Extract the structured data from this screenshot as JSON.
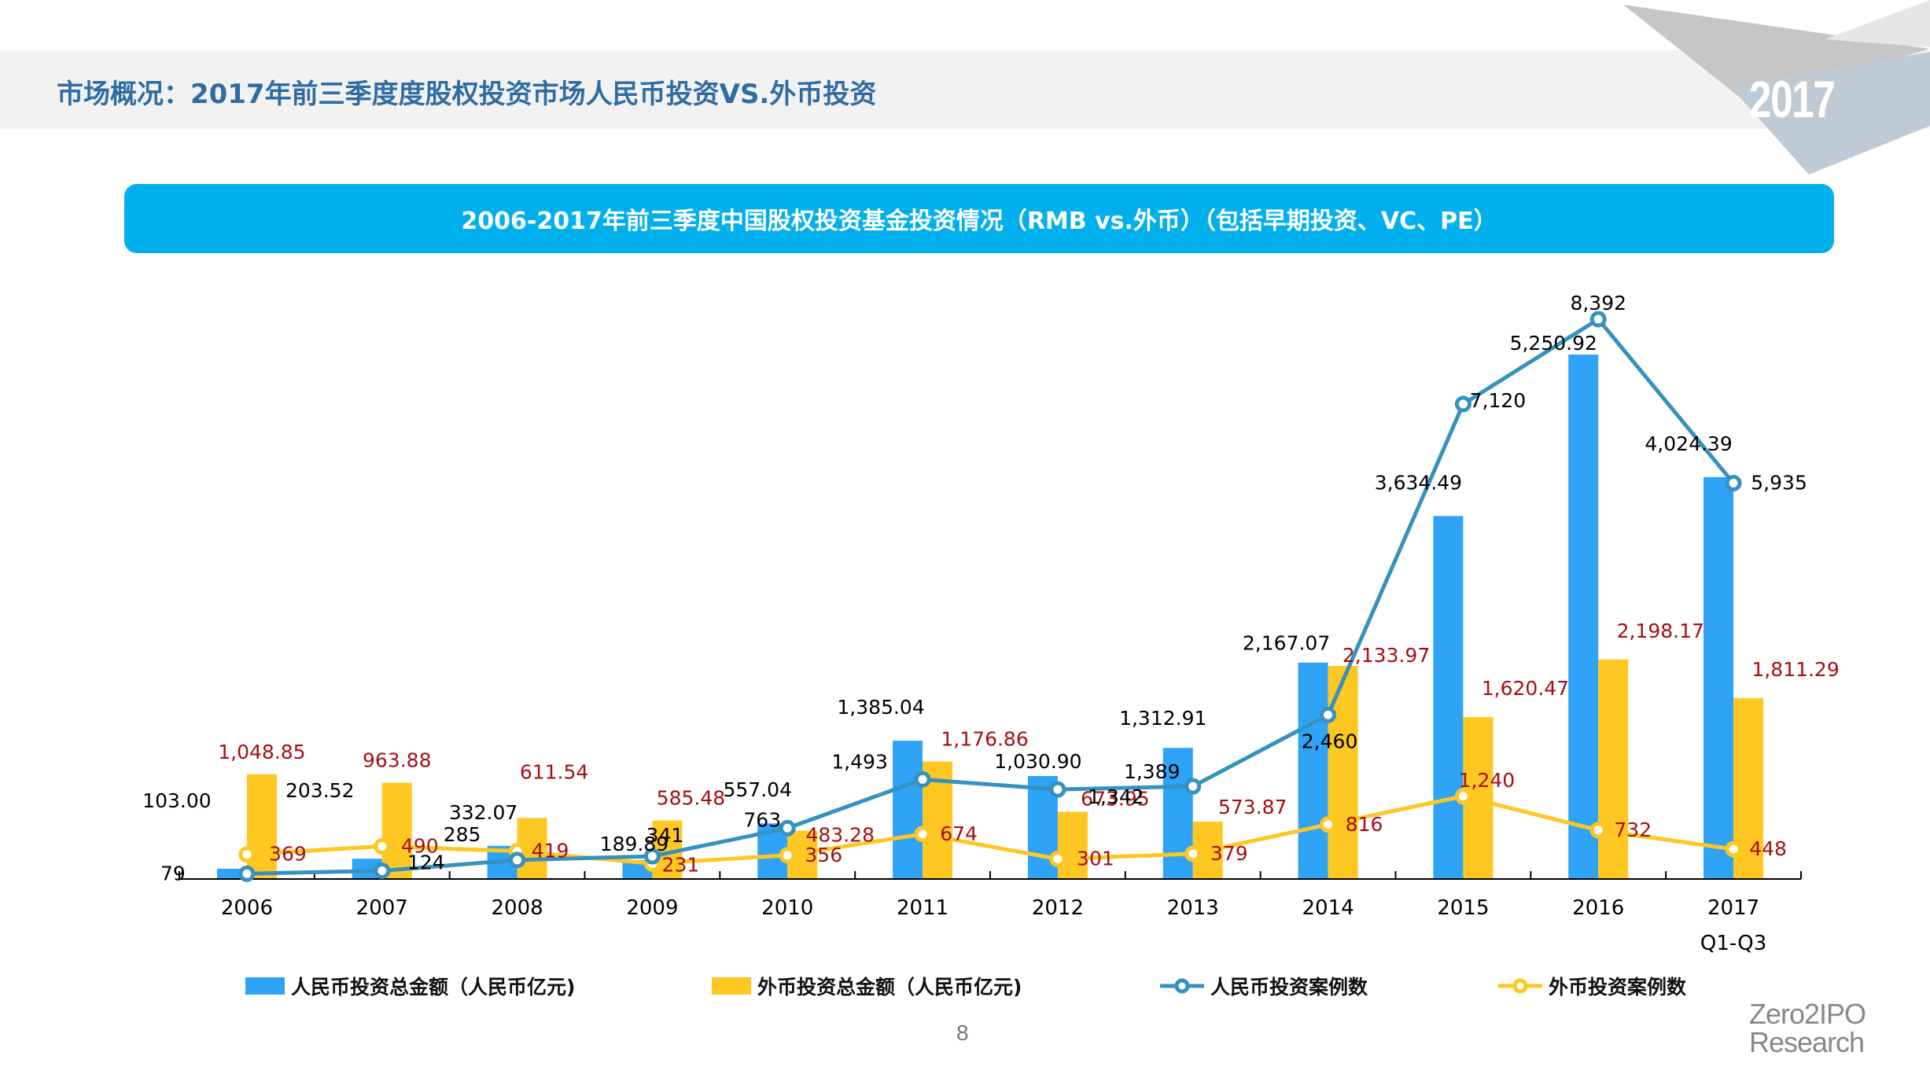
{
  "header": {
    "title": "市场概况：2017年前三季度度股权投资市场人民币投资VS.外币投资",
    "year_badge": "2017"
  },
  "banner": {
    "title": "2006-2017年前三季度中国股权投资基金投资情况（RMB vs.外币）（包括早期投资、VC、PE）"
  },
  "footer": {
    "page_number": "8",
    "brand_line1": "Zero2IPO",
    "brand_line2": "Research"
  },
  "colors": {
    "rmb_bar": "#2fa3f6",
    "foreign_bar": "#ffc721",
    "rmb_line": "#3592c0",
    "foreign_line": "#ffc721",
    "rmb_label": "#000000",
    "foreign_label": "#a50f15",
    "banner": "#00b0ec",
    "title": "#2e6da4"
  },
  "chart_data": {
    "type": "bar",
    "title": "2006-2017年前三季度中国股权投资基金投资情况（RMB vs.外币）（包括早期投资、VC、PE）",
    "categories": [
      "2006",
      "2007",
      "2008",
      "2009",
      "2010",
      "2011",
      "2012",
      "2013",
      "2014",
      "2015",
      "2016",
      "2017"
    ],
    "category_sublabels": [
      "",
      "",
      "",
      "",
      "",
      "",
      "",
      "",
      "",
      "",
      "",
      "Q1-Q3"
    ],
    "xlabel": "",
    "ylabel": "",
    "grid": false,
    "legend_position": "bottom",
    "series": [
      {
        "name": "人民币投资总金额（人民币亿元)",
        "kind": "bar",
        "axis": "amount",
        "values": [
          103.0,
          203.52,
          332.07,
          189.89,
          557.04,
          1385.04,
          1030.9,
          1312.91,
          2167.07,
          3634.49,
          5250.92,
          4024.39
        ],
        "labels": [
          "103.00",
          "203.52",
          "332.07",
          "189.89",
          "557.04",
          "1,385.04",
          "1,030.90",
          "1,312.91",
          "2,167.07",
          "3,634.49",
          "5,250.92",
          "4,024.39"
        ]
      },
      {
        "name": "外币投资总金额（人民币亿元)",
        "kind": "bar",
        "axis": "amount",
        "values": [
          1048.85,
          963.88,
          611.54,
          585.48,
          483.28,
          1176.86,
          673.95,
          573.87,
          2133.97,
          1620.47,
          2198.17,
          1811.29
        ],
        "labels": [
          "1,048.85",
          "963.88",
          "611.54",
          "585.48",
          "483.28",
          "1,176.86",
          "673.95",
          "573.87",
          "2,133.97",
          "1,620.47",
          "2,198.17",
          "1,811.29"
        ]
      },
      {
        "name": "人民币投资案例数",
        "kind": "line",
        "axis": "count",
        "values": [
          79,
          124,
          285,
          341,
          763,
          1493,
          1342,
          1389,
          2460,
          7120,
          8392,
          5935
        ],
        "labels": [
          "79",
          "124",
          "285",
          "341",
          "763",
          "1,493",
          "1,342",
          "1,389",
          "2,460",
          "7,120",
          "8,392",
          "5,935"
        ]
      },
      {
        "name": "外币投资案例数",
        "kind": "line",
        "axis": "count",
        "values": [
          369,
          490,
          419,
          231,
          356,
          674,
          301,
          379,
          816,
          1240,
          732,
          448
        ],
        "labels": [
          "369",
          "490",
          "419",
          "231",
          "356",
          "674",
          "301",
          "379",
          "816",
          "1,240",
          "732",
          "448"
        ]
      }
    ],
    "amount_axis_range": [
      0,
      5600
    ],
    "count_axis_range": [
      0,
      8900
    ]
  }
}
